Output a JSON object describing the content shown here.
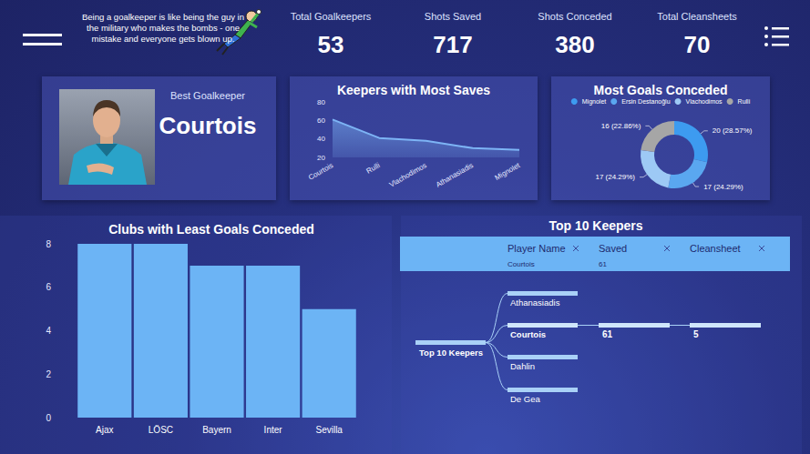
{
  "header": {
    "quote": "Being a goalkeeper is like being the guy in the military who makes the bombs - one mistake and everyone gets blown up.",
    "kpis": [
      {
        "label": "Total Goalkeepers",
        "value": 53
      },
      {
        "label": "Shots Saved",
        "value": 717
      },
      {
        "label": "Shots Conceded",
        "value": 380
      },
      {
        "label": "Total Cleansheets",
        "value": 70
      }
    ]
  },
  "best_goalkeeper": {
    "label": "Best Goalkeeper",
    "name": "Courtois"
  },
  "chart_data": [
    {
      "type": "area",
      "title": "Keepers with Most Saves",
      "categories": [
        "Courtois",
        "Rulli",
        "Vlachodimos",
        "Athanasiadis",
        "Mignolet"
      ],
      "values": [
        61,
        41,
        38,
        30,
        28
      ],
      "color": "#7db4f5",
      "ylim": [
        20,
        80
      ],
      "yticks": [
        20,
        40,
        60,
        80
      ],
      "grid": false
    },
    {
      "type": "pie",
      "title": "Most Goals Conceded",
      "categories": [
        "Mignolet",
        "Ersin Destanoğlu",
        "Vlachodimos",
        "Rulli"
      ],
      "values": [
        20,
        17,
        17,
        16
      ],
      "value_labels": [
        "20 (28.57%)",
        "17 (24.29%)",
        "17 (24.29%)",
        "16 (22.86%)"
      ],
      "colors": [
        "#3d9bf0",
        "#5aa7f0",
        "#9dc9f5",
        "#a6a6a6"
      ],
      "legend": "top",
      "data_labels": true
    },
    {
      "type": "bar",
      "title": "Clubs with Least Goals Conceded",
      "categories": [
        "Ajax",
        "LÖSC",
        "Bayern",
        "Inter",
        "Sevilla"
      ],
      "values": [
        8,
        8,
        7,
        7,
        5
      ],
      "color": "#6cb4f5",
      "ylim": [
        0,
        8
      ],
      "yticks": [
        0,
        2,
        4,
        6,
        8
      ],
      "grid": false
    }
  ],
  "table": {
    "title": "Top 10 Keepers",
    "columns": [
      "Player Name",
      "Saved",
      "Cleansheet"
    ],
    "rows": [
      [
        "Courtois",
        "61"
      ]
    ]
  },
  "tree": {
    "root": "Top 10 Keepers",
    "children": [
      "Athanasiadis",
      "Courtois",
      "Dahlin",
      "De Gea"
    ],
    "selected": "Courtois",
    "path": [
      "61",
      "5"
    ]
  }
}
